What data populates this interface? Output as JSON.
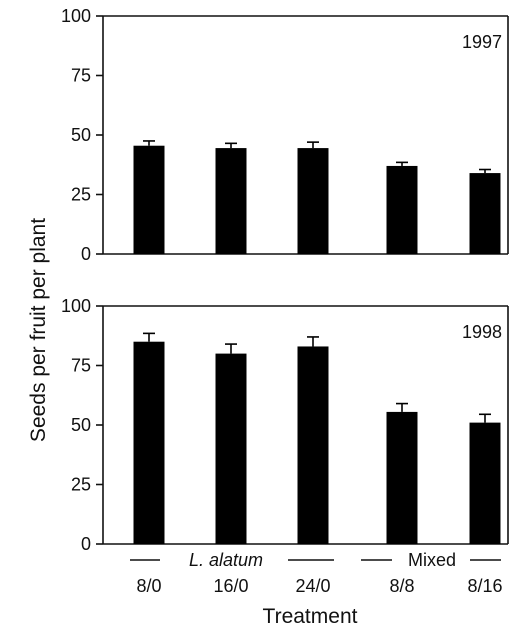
{
  "chart_data": [
    {
      "type": "bar",
      "panel_label": "1997",
      "categories": [
        "8/0",
        "16/0",
        "24/0",
        "8/8",
        "8/16"
      ],
      "values": [
        45.5,
        44.5,
        44.5,
        37,
        34
      ],
      "errors": [
        2,
        2,
        2.5,
        1.5,
        1.5
      ],
      "ylim": [
        0,
        100
      ],
      "yticks": [
        0,
        25,
        50,
        75,
        100
      ],
      "bar_color": "#000000"
    },
    {
      "type": "bar",
      "panel_label": "1998",
      "categories": [
        "8/0",
        "16/0",
        "24/0",
        "8/8",
        "8/16"
      ],
      "values": [
        85,
        80,
        83,
        55.5,
        51
      ],
      "errors": [
        3.5,
        4,
        4,
        3.5,
        3.5
      ],
      "ylim": [
        0,
        100
      ],
      "yticks": [
        0,
        25,
        50,
        75,
        100
      ],
      "bar_color": "#000000"
    }
  ],
  "axes": {
    "ylabel": "Seeds per fruit per plant",
    "xlabel": "Treatment"
  },
  "groups": {
    "left": "L. alatum",
    "right": "Mixed"
  },
  "categories": [
    "8/0",
    "16/0",
    "24/0",
    "8/8",
    "8/16"
  ]
}
